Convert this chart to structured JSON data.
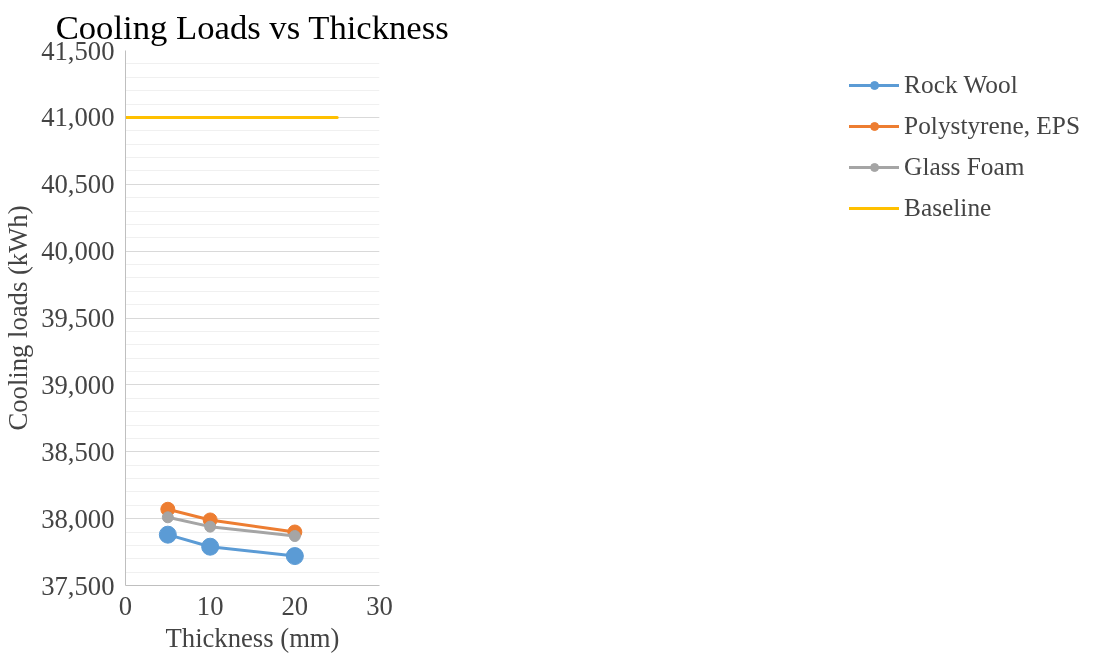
{
  "chart_data": {
    "type": "line",
    "title": "Cooling Loads vs Thickness",
    "xlabel": "Thickness (mm)",
    "ylabel": "Cooling loads (kWh)",
    "xlim": [
      0,
      30
    ],
    "xticks": [
      0,
      10,
      20,
      30
    ],
    "ylim": [
      37500,
      41500
    ],
    "yticks": [
      {
        "value": 37500,
        "label": "37,500"
      },
      {
        "value": 38000,
        "label": "38,000"
      },
      {
        "value": 38500,
        "label": "38,500"
      },
      {
        "value": 39000,
        "label": "39,000"
      },
      {
        "value": 39500,
        "label": "39,500"
      },
      {
        "value": 40000,
        "label": "40,000"
      },
      {
        "value": 40500,
        "label": "40,500"
      },
      {
        "value": 41000,
        "label": "41,000"
      },
      {
        "value": 41500,
        "label": "41,500"
      }
    ],
    "grid": "y",
    "legend": "right",
    "series": [
      {
        "name": "Rock Wool",
        "color": "#5b9bd5",
        "marker": "circle",
        "x": [
          5,
          10,
          20
        ],
        "values": [
          37880,
          37790,
          37720
        ]
      },
      {
        "name": "Polystyrene, EPS",
        "color": "#ed7d31",
        "marker": "circle",
        "x": [
          5,
          10,
          20
        ],
        "values": [
          38070,
          37990,
          37900
        ]
      },
      {
        "name": "Glass Foam",
        "color": "#a5a5a5",
        "marker": "circle",
        "x": [
          5,
          10,
          20
        ],
        "values": [
          38010,
          37940,
          37870
        ]
      },
      {
        "name": "Baseline",
        "color": "#ffc000",
        "marker": "none",
        "x": [
          0,
          25
        ],
        "values": [
          41000,
          41000
        ]
      }
    ]
  }
}
